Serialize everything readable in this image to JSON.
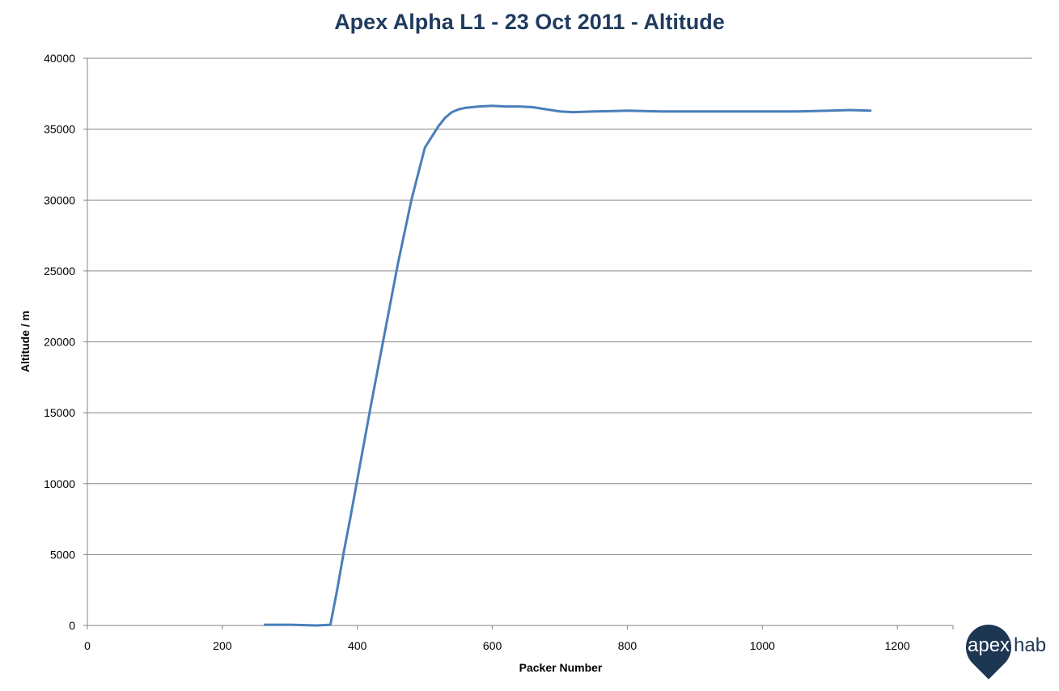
{
  "chart_data": {
    "type": "line",
    "title": "Apex Alpha L1 - 23 Oct 2011 - Altitude",
    "xlabel": "Packer Number",
    "ylabel": "Altitude / m",
    "xlim": [
      0,
      1280
    ],
    "ylim": [
      0,
      40000
    ],
    "x_ticks": [
      "0",
      "200",
      "400",
      "600",
      "800",
      "1000",
      "1200"
    ],
    "y_ticks": [
      "0",
      "5000",
      "10000",
      "15000",
      "20000",
      "25000",
      "30000",
      "35000",
      "40000"
    ],
    "grid": "horizontal",
    "legend": "none",
    "series": [
      {
        "color": "#4a7ebb",
        "x": [
          263,
          300,
          340,
          360,
          370,
          380,
          390,
          400,
          420,
          440,
          460,
          480,
          500,
          520,
          530,
          540,
          550,
          560,
          580,
          600,
          620,
          640,
          660,
          680,
          700,
          720,
          750,
          800,
          850,
          900,
          950,
          1000,
          1050,
          1100,
          1130,
          1160
        ],
        "y": [
          50,
          50,
          0,
          50,
          2500,
          5200,
          7700,
          10300,
          15500,
          20500,
          25500,
          30000,
          33700,
          35200,
          35800,
          36200,
          36400,
          36500,
          36600,
          36650,
          36600,
          36600,
          36550,
          36400,
          36250,
          36200,
          36250,
          36300,
          36250,
          36250,
          36250,
          36250,
          36250,
          36300,
          36350,
          36300
        ]
      }
    ]
  },
  "logo": {
    "text_a": "apex",
    "text_b": "hab"
  }
}
